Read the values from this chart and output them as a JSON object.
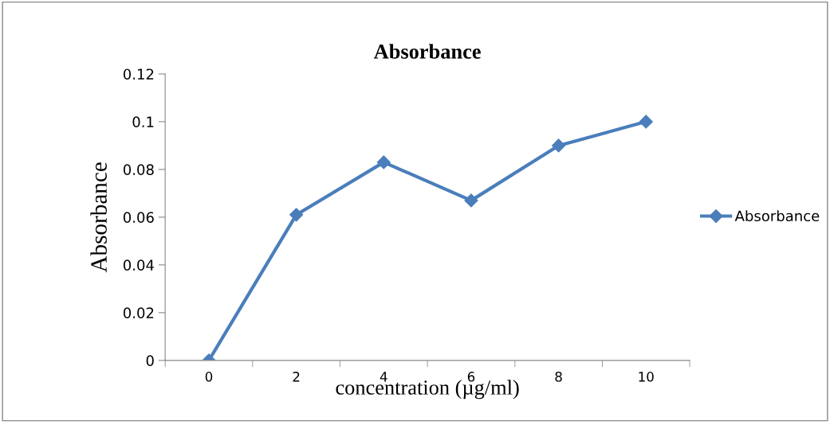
{
  "chart_data": {
    "type": "line",
    "title": "Absorbance",
    "xlabel": "concentration (µg/ml)",
    "ylabel": "Absorbance",
    "categories": [
      "0",
      "2",
      "4",
      "6",
      "8",
      "10"
    ],
    "series": [
      {
        "name": "Absorbance",
        "color": "#4a7ebb",
        "values": [
          0,
          0.061,
          0.083,
          0.067,
          0.09,
          0.1
        ]
      }
    ],
    "ylim": [
      0,
      0.12
    ],
    "yticks": [
      0,
      0.02,
      0.04,
      0.06,
      0.08,
      0.1,
      0.12
    ],
    "grid": false,
    "legend": "right",
    "marker": "diamond",
    "line_style": "solid"
  }
}
